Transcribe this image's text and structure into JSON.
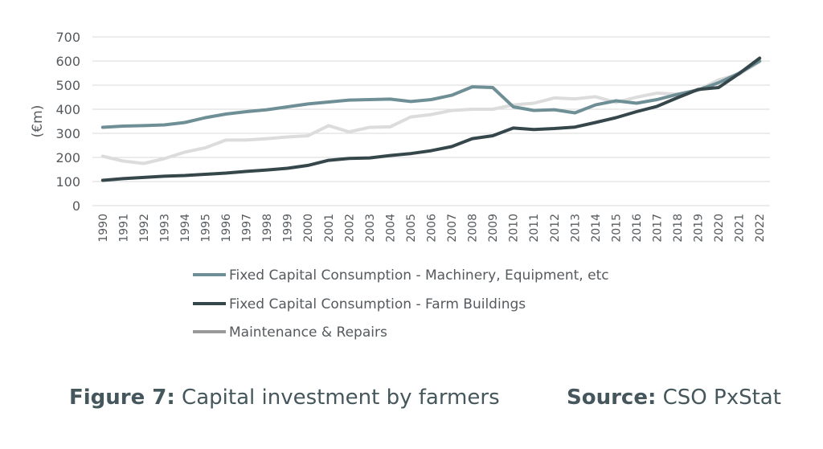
{
  "chart_data": {
    "type": "line",
    "title": "",
    "ylabel": "(€m)",
    "xlabel": "",
    "ylim": [
      0,
      700
    ],
    "yticks": [
      0,
      100,
      200,
      300,
      400,
      500,
      600,
      700
    ],
    "grid": "horizontal",
    "legend_position": "bottom",
    "x": [
      "1990",
      "1991",
      "1992",
      "1993",
      "1994",
      "1995",
      "1996",
      "1997",
      "1998",
      "1999",
      "2000",
      "2001",
      "2002",
      "2003",
      "2004",
      "2005",
      "2006",
      "2007",
      "2008",
      "2009",
      "2010",
      "2011",
      "2012",
      "2013",
      "2014",
      "2015",
      "2016",
      "2017",
      "2018",
      "2019",
      "2020",
      "2021",
      "2022"
    ],
    "series": [
      {
        "name": "Fixed Capital Consumption - Machinery, Equipment, etc",
        "color": "#6e8f95",
        "values": [
          325,
          330,
          332,
          335,
          345,
          365,
          380,
          390,
          398,
          410,
          422,
          430,
          438,
          440,
          442,
          432,
          440,
          458,
          493,
          490,
          410,
          395,
          398,
          385,
          418,
          435,
          425,
          440,
          462,
          480,
          510,
          550,
          600
        ]
      },
      {
        "name": "Fixed Capital Consumption - Farm Buildings",
        "color": "#36474c",
        "values": [
          105,
          112,
          117,
          122,
          125,
          130,
          135,
          142,
          148,
          155,
          167,
          188,
          196,
          198,
          208,
          216,
          228,
          245,
          278,
          290,
          322,
          316,
          320,
          326,
          345,
          365,
          390,
          412,
          448,
          482,
          490,
          548,
          612
        ]
      },
      {
        "name": "Maintenance & Repairs",
        "color": "#dcdcdc",
        "legend_color": "#9a9a9a",
        "values": [
          205,
          185,
          175,
          195,
          222,
          240,
          272,
          272,
          278,
          285,
          290,
          332,
          306,
          325,
          327,
          368,
          378,
          395,
          400,
          400,
          418,
          425,
          447,
          443,
          452,
          428,
          450,
          467,
          462,
          480,
          522,
          545,
          598
        ]
      }
    ]
  },
  "caption": {
    "figure_label": "Figure 7:",
    "figure_text": " Capital investment by farmers",
    "source_label": "Source:",
    "source_text": " CSO PxStat"
  }
}
